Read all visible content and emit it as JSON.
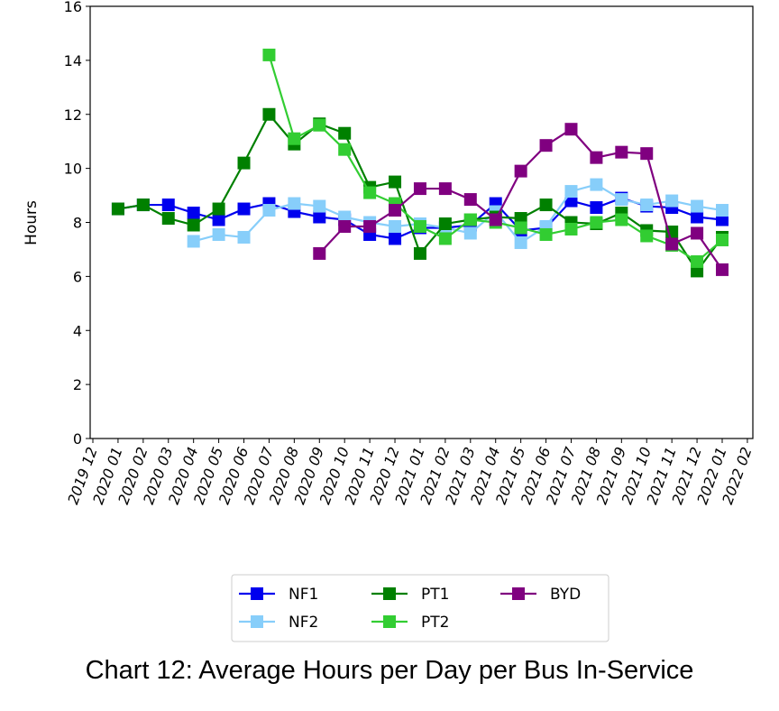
{
  "chart_data": {
    "type": "line",
    "title": "Chart 12: Average Hours per Day per Bus In-Service",
    "xlabel": "",
    "ylabel": "Hours",
    "ylim": [
      0,
      16
    ],
    "yticks": [
      0,
      2,
      4,
      6,
      8,
      10,
      12,
      14,
      16
    ],
    "xtick_labels": [
      "2019 12",
      "2020 01",
      "2020 02",
      "2020 03",
      "2020 04",
      "2020 05",
      "2020 06",
      "2020 07",
      "2020 08",
      "2020 09",
      "2020 10",
      "2020 11",
      "2020 12",
      "2021 01",
      "2021 02",
      "2021 03",
      "2021 04",
      "2021 05",
      "2021 06",
      "2021 07",
      "2021 08",
      "2021 09",
      "2021 10",
      "2021 11",
      "2021 12",
      "2022 01",
      "2022 02"
    ],
    "x": [
      "2020 01",
      "2020 02",
      "2020 03",
      "2020 04",
      "2020 05",
      "2020 06",
      "2020 07",
      "2020 08",
      "2020 09",
      "2020 10",
      "2020 11",
      "2020 12",
      "2021 01",
      "2021 02",
      "2021 03",
      "2021 04",
      "2021 05",
      "2021 06",
      "2021 07",
      "2021 08",
      "2021 09",
      "2021 10",
      "2021 11",
      "2021 12",
      "2022 01"
    ],
    "legend_position": "bottom-center",
    "series": [
      {
        "name": "NF1",
        "color": "#0000ee",
        "values": [
          8.5,
          8.65,
          8.65,
          8.35,
          8.1,
          8.5,
          8.7,
          8.4,
          8.2,
          8.1,
          7.55,
          7.4,
          7.8,
          7.8,
          7.9,
          8.7,
          7.7,
          7.8,
          8.8,
          8.55,
          8.9,
          8.6,
          8.55,
          8.2,
          8.1
        ]
      },
      {
        "name": "NF2",
        "color": "#87cefa",
        "values": [
          null,
          null,
          null,
          7.3,
          7.55,
          7.45,
          8.45,
          8.7,
          8.6,
          8.2,
          8.0,
          7.85,
          7.95,
          7.8,
          7.6,
          8.4,
          7.25,
          7.85,
          9.15,
          9.4,
          8.85,
          8.65,
          8.8,
          8.6,
          8.45
        ]
      },
      {
        "name": "PT1",
        "color": "#008000",
        "values": [
          8.5,
          8.65,
          8.15,
          7.9,
          8.5,
          10.2,
          12.0,
          10.9,
          11.65,
          11.3,
          9.3,
          9.5,
          6.85,
          7.95,
          8.1,
          8.2,
          8.15,
          8.65,
          8.0,
          7.95,
          8.35,
          7.7,
          7.65,
          6.2,
          7.45
        ]
      },
      {
        "name": "PT2",
        "color": "#32cd32",
        "values": [
          null,
          null,
          null,
          null,
          null,
          null,
          14.2,
          11.1,
          11.6,
          10.7,
          9.1,
          8.7,
          7.85,
          7.4,
          8.1,
          8.0,
          7.8,
          7.55,
          7.75,
          8.0,
          8.1,
          7.5,
          7.15,
          6.55,
          7.35
        ]
      },
      {
        "name": "BYD",
        "color": "#800080",
        "values": [
          null,
          null,
          null,
          null,
          null,
          null,
          null,
          null,
          6.85,
          7.85,
          7.85,
          8.45,
          9.25,
          9.25,
          8.85,
          8.1,
          9.9,
          10.85,
          11.45,
          10.4,
          10.6,
          10.55,
          7.2,
          7.6,
          6.25
        ]
      }
    ]
  }
}
